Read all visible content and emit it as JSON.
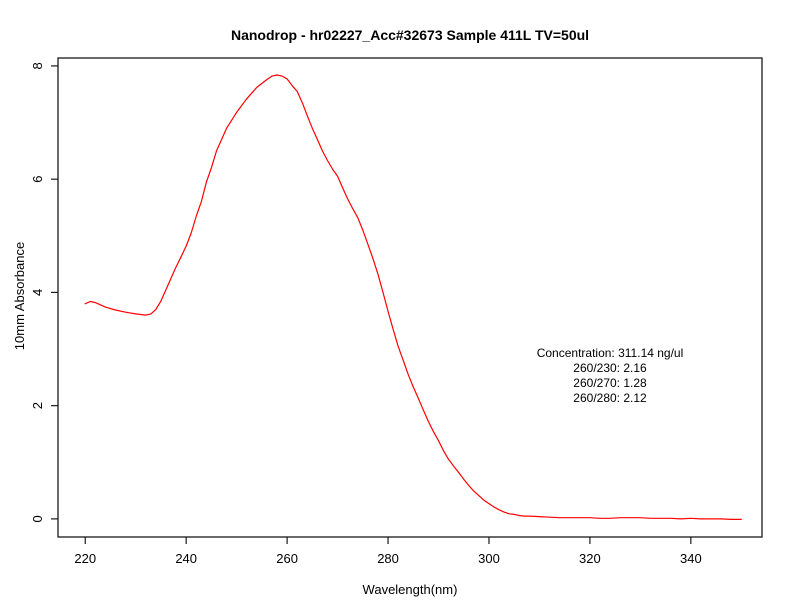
{
  "chart_data": {
    "type": "line",
    "title": "Nanodrop - hr02227_Acc#32673 Sample 411L TV=50ul",
    "xlabel": "Wavelength(nm)",
    "ylabel": "10mm Absorbance",
    "grid": false,
    "legend": "none",
    "line_color": "#ff0000",
    "axis_color": "#1a1a1a",
    "background_color": "#ffffff",
    "xlim": [
      214.6,
      354.1
    ],
    "ylim": [
      -0.32,
      8.14
    ],
    "x_ticks": [
      220,
      240,
      260,
      280,
      300,
      320,
      340
    ],
    "y_ticks": [
      0,
      2,
      4,
      6,
      8
    ],
    "series": [
      {
        "name": "absorbance_spectrum",
        "x": [
          220,
          221,
          222,
          224,
          226,
          228,
          230,
          232,
          233,
          234,
          235,
          236,
          237,
          238,
          239,
          240,
          241,
          242,
          243,
          244,
          245,
          246,
          248,
          250,
          252,
          254,
          256,
          257,
          258,
          259,
          260,
          261,
          262,
          263,
          264,
          265,
          266,
          267,
          268,
          269,
          270,
          271,
          272,
          273,
          274,
          275,
          276,
          277,
          278,
          279,
          280,
          281,
          282,
          283,
          284,
          285,
          286,
          287,
          288,
          289,
          290,
          291,
          292,
          293,
          294,
          295,
          296,
          297,
          298,
          299,
          300,
          301,
          302,
          303,
          304,
          305,
          306,
          307,
          308,
          310,
          312,
          314,
          316,
          318,
          320,
          322,
          324,
          326,
          328,
          330,
          332,
          334,
          336,
          338,
          340,
          342,
          344,
          346,
          348,
          350
        ],
        "y": [
          3.8,
          3.84,
          3.82,
          3.74,
          3.69,
          3.65,
          3.62,
          3.6,
          3.62,
          3.7,
          3.85,
          4.05,
          4.25,
          4.45,
          4.63,
          4.82,
          5.05,
          5.35,
          5.6,
          5.95,
          6.2,
          6.5,
          6.9,
          7.18,
          7.42,
          7.62,
          7.76,
          7.82,
          7.84,
          7.82,
          7.77,
          7.65,
          7.55,
          7.35,
          7.12,
          6.9,
          6.7,
          6.5,
          6.33,
          6.18,
          6.05,
          5.85,
          5.65,
          5.48,
          5.32,
          5.1,
          4.85,
          4.6,
          4.32,
          4.0,
          3.67,
          3.35,
          3.05,
          2.8,
          2.55,
          2.33,
          2.13,
          1.92,
          1.72,
          1.54,
          1.38,
          1.2,
          1.05,
          0.93,
          0.82,
          0.7,
          0.59,
          0.49,
          0.41,
          0.33,
          0.27,
          0.21,
          0.16,
          0.12,
          0.09,
          0.08,
          0.06,
          0.05,
          0.05,
          0.04,
          0.03,
          0.02,
          0.02,
          0.02,
          0.02,
          0.01,
          0.01,
          0.02,
          0.02,
          0.02,
          0.01,
          0.01,
          0.01,
          0.0,
          0.01,
          0.0,
          0.0,
          0.0,
          -0.01,
          -0.01
        ]
      }
    ],
    "annotation": {
      "lines": [
        "Concentration: 311.14 ng/ul",
        "260/230: 2.16",
        "260/270: 1.28",
        "260/280: 2.12"
      ]
    }
  }
}
